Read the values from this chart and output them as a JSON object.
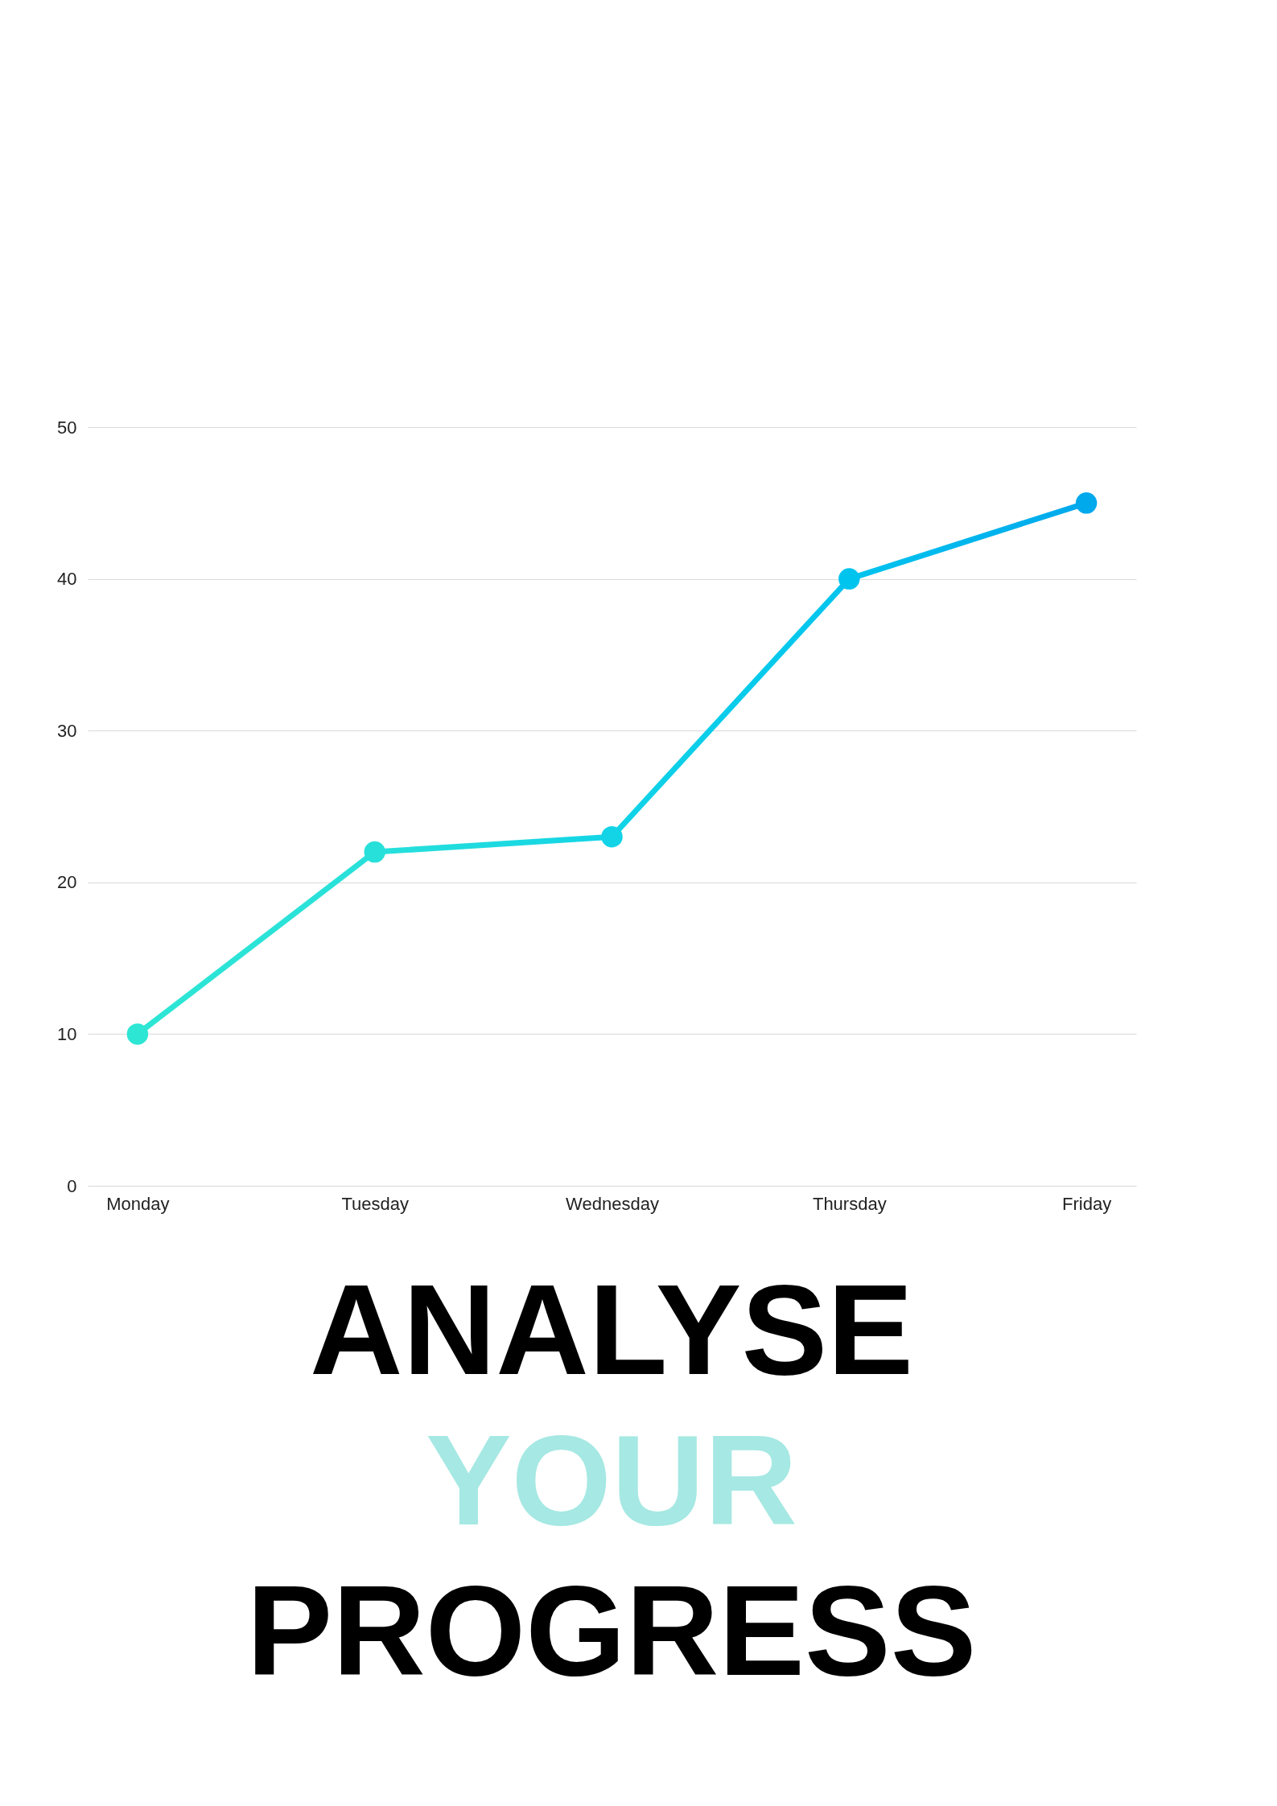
{
  "chart_data": {
    "type": "line",
    "title": "ANALYSE YOUR PROGRESS",
    "categories": [
      "Monday",
      "Tuesday",
      "Wednesday",
      "Thursday",
      "Friday"
    ],
    "series": [
      {
        "colors": [
          "#2de6d4",
          "#28e0da",
          "#12d4e6",
          "#00c4ee",
          "#00a8ec"
        ],
        "values": [
          10,
          22,
          23,
          40,
          45
        ]
      }
    ],
    "ylim": [
      0,
      50
    ],
    "yticks": [
      0,
      10,
      20,
      30,
      40,
      50
    ],
    "grid": "y",
    "marker": "circle",
    "line_style": "solid"
  }
}
